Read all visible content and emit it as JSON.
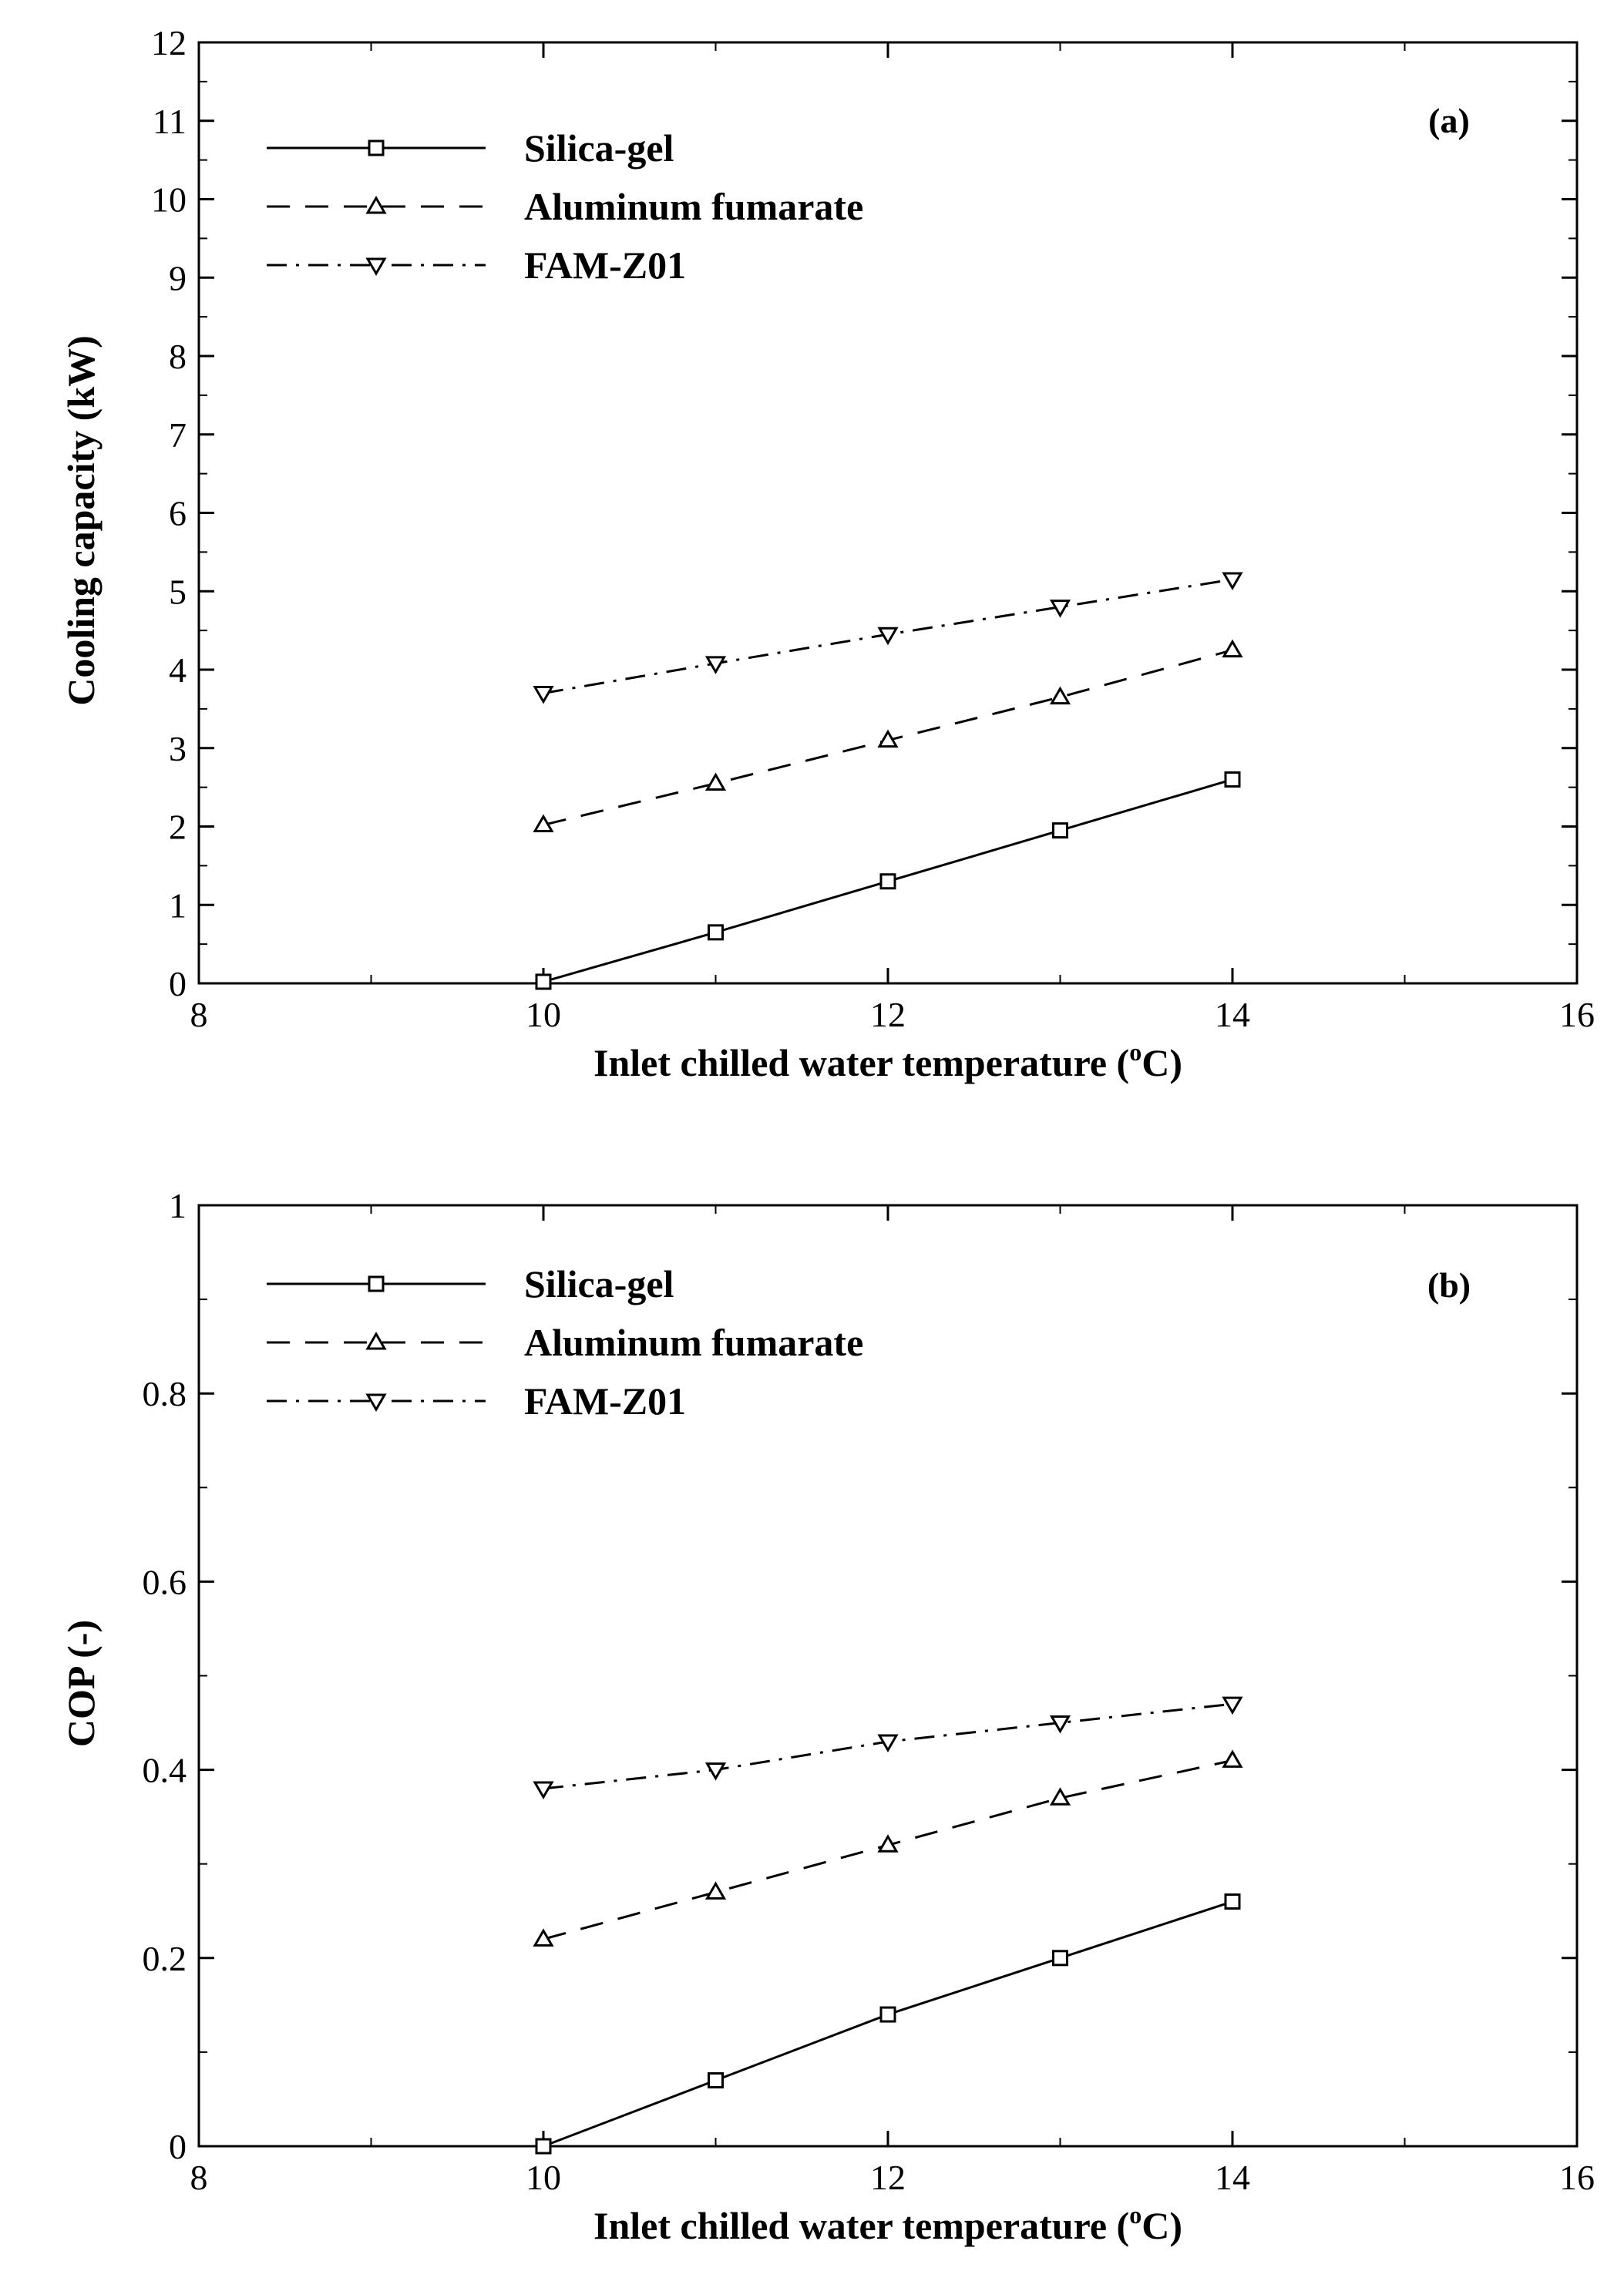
{
  "chart_data": [
    {
      "type": "line",
      "panel_label": "(a)",
      "title": "",
      "xlabel": "Inlet chilled water temperature (",
      "xlabel_sup": "o",
      "xlabel_tail": "C)",
      "ylabel": "Cooling capacity (kW)",
      "xlim": [
        8,
        16
      ],
      "ylim": [
        0,
        12
      ],
      "x_ticks": [
        8,
        10,
        12,
        14,
        16
      ],
      "x_tick_labels": [
        "8",
        "10",
        "12",
        "14",
        "16"
      ],
      "y_ticks": [
        0,
        1,
        2,
        3,
        4,
        5,
        6,
        7,
        8,
        9,
        10,
        11,
        12
      ],
      "y_tick_labels": [
        "0",
        "1",
        "2",
        "3",
        "4",
        "5",
        "6",
        "7",
        "8",
        "9",
        "10",
        "11",
        "12"
      ],
      "grid": false,
      "legend_position": "top-left",
      "x": [
        10,
        11,
        12,
        13,
        14
      ],
      "series": [
        {
          "name": "Silica-gel",
          "marker": "square",
          "dash": "solid",
          "values": [
            0.02,
            0.65,
            1.3,
            1.95,
            2.6
          ]
        },
        {
          "name": "Aluminum fumarate",
          "marker": "triangle-up",
          "dash": "dash",
          "values": [
            2.02,
            2.55,
            3.1,
            3.65,
            4.25
          ]
        },
        {
          "name": "FAM-Z01",
          "marker": "triangle-down",
          "dash": "dashdot",
          "values": [
            3.7,
            4.08,
            4.45,
            4.8,
            5.15
          ]
        }
      ]
    },
    {
      "type": "line",
      "panel_label": "(b)",
      "title": "",
      "xlabel": "Inlet chilled water temperature (",
      "xlabel_sup": "o",
      "xlabel_tail": "C)",
      "ylabel": "COP (-)",
      "xlim": [
        8,
        16
      ],
      "ylim": [
        0,
        1
      ],
      "x_ticks": [
        8,
        10,
        12,
        14,
        16
      ],
      "x_tick_labels": [
        "8",
        "10",
        "12",
        "14",
        "16"
      ],
      "y_ticks": [
        0,
        0.2,
        0.4,
        0.6,
        0.8,
        1
      ],
      "y_tick_labels": [
        "0",
        "0.2",
        "0.4",
        "0.6",
        "0.8",
        "1"
      ],
      "grid": false,
      "legend_position": "top-left",
      "x": [
        10,
        11,
        12,
        13,
        14
      ],
      "series": [
        {
          "name": "Silica-gel",
          "marker": "square",
          "dash": "solid",
          "values": [
            0.0,
            0.07,
            0.14,
            0.2,
            0.26
          ]
        },
        {
          "name": "Aluminum fumarate",
          "marker": "triangle-up",
          "dash": "dash",
          "values": [
            0.22,
            0.27,
            0.32,
            0.37,
            0.41
          ]
        },
        {
          "name": "FAM-Z01",
          "marker": "triangle-down",
          "dash": "dashdot",
          "values": [
            0.38,
            0.4,
            0.43,
            0.45,
            0.47
          ]
        }
      ]
    }
  ]
}
